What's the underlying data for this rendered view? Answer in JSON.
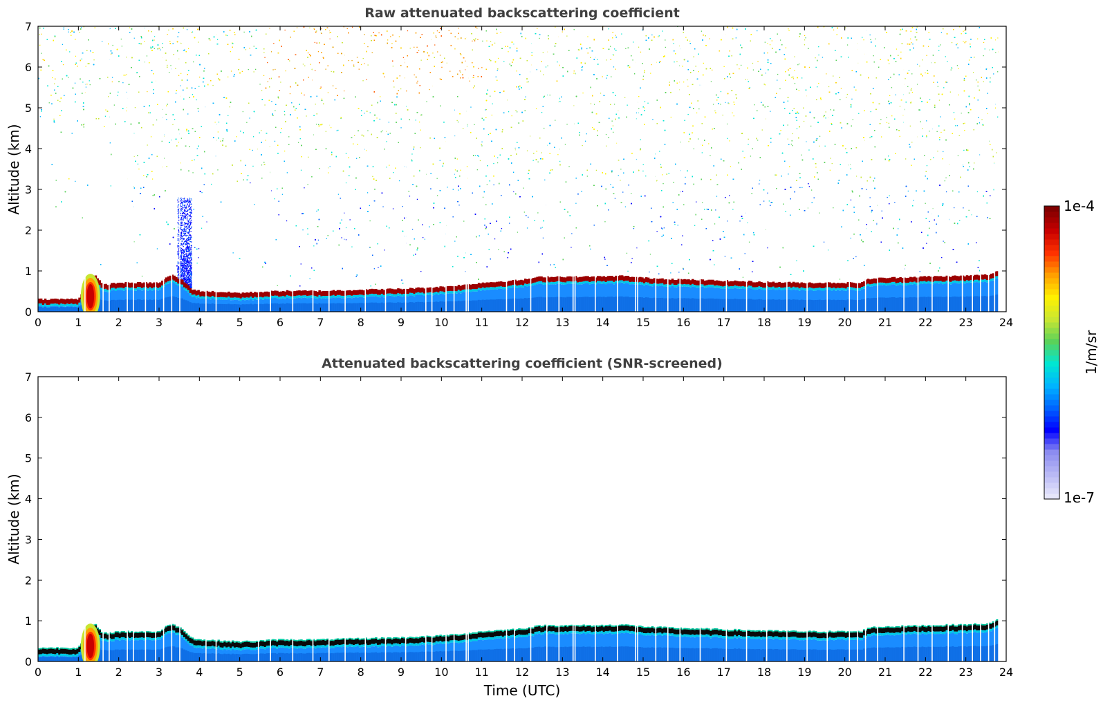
{
  "chart_data": [
    {
      "type": "heatmap",
      "title": "Raw attenuated backscattering coefficient",
      "xlabel": "",
      "ylabel": "Altitude (km)",
      "xlim": [
        0,
        24
      ],
      "ylim": [
        0,
        7
      ],
      "x_ticks": [
        "0",
        "1",
        "2",
        "3",
        "4",
        "5",
        "6",
        "7",
        "8",
        "9",
        "10",
        "11",
        "12",
        "13",
        "14",
        "15",
        "16",
        "17",
        "18",
        "19",
        "20",
        "21",
        "22",
        "23",
        "24"
      ],
      "y_ticks": [
        "0",
        "1",
        "2",
        "3",
        "4",
        "5",
        "6",
        "7"
      ],
      "data_end_hour": 23.8,
      "layer_top_km": {
        "x": [
          0,
          1.0,
          1.2,
          1.4,
          1.6,
          2,
          3,
          3.3,
          3.6,
          3.8,
          4,
          5,
          6,
          7,
          8,
          9,
          10,
          10.6,
          11,
          12,
          12.5,
          13,
          14,
          14.5,
          15,
          16,
          17,
          18,
          19,
          20,
          20.4,
          20.6,
          21,
          22,
          23,
          23.6,
          23.8
        ],
        "y": [
          0.25,
          0.25,
          0.6,
          0.85,
          0.6,
          0.65,
          0.65,
          0.85,
          0.7,
          0.5,
          0.45,
          0.4,
          0.45,
          0.45,
          0.48,
          0.5,
          0.55,
          0.6,
          0.65,
          0.72,
          0.8,
          0.8,
          0.8,
          0.82,
          0.77,
          0.73,
          0.7,
          0.67,
          0.65,
          0.65,
          0.65,
          0.75,
          0.77,
          0.8,
          0.82,
          0.85,
          0.95
        ]
      },
      "data_gaps_hour": [
        1.15,
        1.6,
        1.75,
        2.2,
        2.35,
        2.65,
        2.9,
        3.1,
        3.3,
        3.5,
        4.15,
        4.4,
        5.45,
        5.75,
        6.3,
        6.8,
        7.2,
        7.6,
        8.1,
        8.6,
        9.1,
        9.6,
        9.75,
        10.1,
        10.3,
        10.6,
        10.65,
        11.6,
        11.8,
        12.2,
        12.6,
        12.9,
        13.25,
        13.3,
        13.8,
        14.35,
        14.8,
        14.85,
        15.3,
        15.6,
        15.9,
        16.4,
        17.05,
        17.55,
        18.05,
        18.55,
        19.05,
        19.55,
        20.1,
        20.3,
        20.5,
        20.8,
        21.45,
        21.8,
        22.15,
        22.55,
        22.9,
        23.15,
        23.35,
        23.55,
        23.7
      ]
    },
    {
      "type": "heatmap",
      "title": "Attenuated backscattering coefficient (SNR-screened)",
      "xlabel": "Time (UTC)",
      "ylabel": "Altitude (km)",
      "xlim": [
        0,
        24
      ],
      "ylim": [
        0,
        7
      ],
      "x_ticks": [
        "0",
        "1",
        "2",
        "3",
        "4",
        "5",
        "6",
        "7",
        "8",
        "9",
        "10",
        "11",
        "12",
        "13",
        "14",
        "15",
        "16",
        "17",
        "18",
        "19",
        "20",
        "21",
        "22",
        "23",
        "24"
      ],
      "y_ticks": [
        "0",
        "1",
        "2",
        "3",
        "4",
        "5",
        "6",
        "7"
      ],
      "data_end_hour": 23.8,
      "layer_top_km": {
        "x": [
          0,
          1.0,
          1.2,
          1.4,
          1.6,
          2,
          3,
          3.3,
          3.6,
          3.8,
          4,
          5,
          6,
          7,
          8,
          9,
          10,
          10.6,
          11,
          12,
          12.5,
          13,
          14,
          14.5,
          15,
          16,
          17,
          18,
          19,
          20,
          20.4,
          20.6,
          21,
          22,
          23,
          23.6,
          23.8
        ],
        "y": [
          0.25,
          0.25,
          0.6,
          0.85,
          0.6,
          0.65,
          0.65,
          0.85,
          0.7,
          0.5,
          0.45,
          0.4,
          0.45,
          0.45,
          0.48,
          0.5,
          0.55,
          0.6,
          0.65,
          0.72,
          0.8,
          0.8,
          0.8,
          0.82,
          0.77,
          0.73,
          0.7,
          0.67,
          0.65,
          0.65,
          0.65,
          0.75,
          0.77,
          0.8,
          0.82,
          0.85,
          0.95
        ]
      },
      "data_gaps_hour": [
        1.15,
        1.6,
        1.75,
        2.2,
        2.35,
        2.65,
        2.9,
        3.1,
        3.3,
        3.5,
        4.15,
        4.4,
        5.45,
        5.75,
        6.3,
        6.8,
        7.2,
        7.6,
        8.1,
        8.6,
        9.1,
        9.6,
        9.75,
        10.1,
        10.3,
        10.6,
        10.65,
        11.6,
        11.8,
        12.2,
        12.6,
        12.9,
        13.25,
        13.3,
        13.8,
        14.35,
        14.8,
        14.85,
        15.3,
        15.6,
        15.9,
        16.4,
        17.05,
        17.55,
        18.05,
        18.55,
        19.05,
        19.55,
        20.1,
        20.3,
        20.5,
        20.8,
        21.45,
        21.8,
        22.15,
        22.55,
        22.9,
        23.15,
        23.35,
        23.55,
        23.7
      ]
    }
  ],
  "colorbar": {
    "label": "1/m/sr",
    "max_label": "1e-4",
    "min_label": "1e-7",
    "scale": "log",
    "colors": [
      "#e6e6fa",
      "#b9b9f5",
      "#8c8cf0",
      "#0000ff",
      "#0064ff",
      "#00b4ff",
      "#00e6d2",
      "#5ad25a",
      "#c8e632",
      "#fff000",
      "#ffa000",
      "#ff3200",
      "#c80000",
      "#800000"
    ]
  }
}
